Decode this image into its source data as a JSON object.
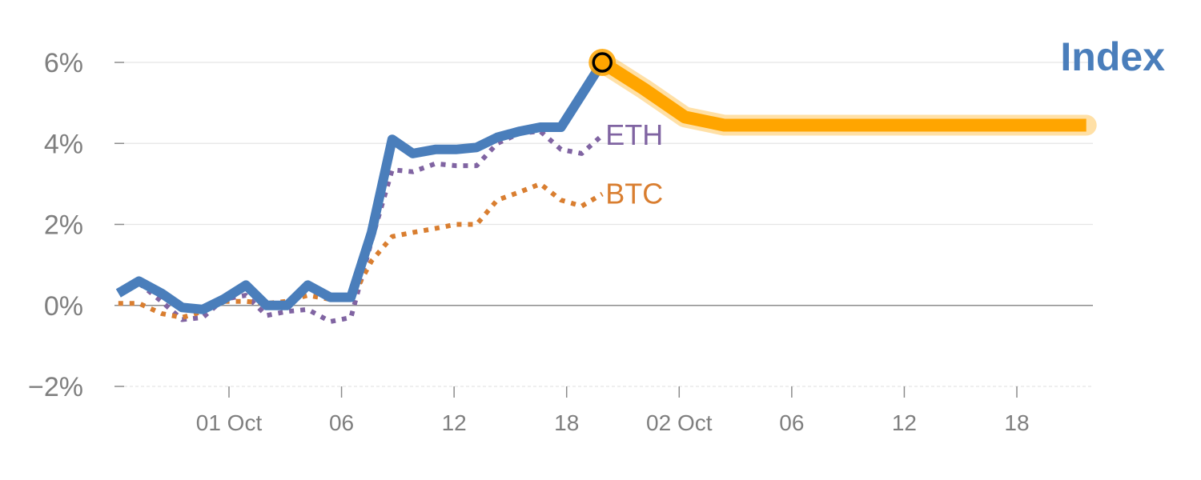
{
  "chart_data": {
    "type": "line",
    "title": "Index",
    "ylim": [
      -2,
      6
    ],
    "y_ticks": [
      {
        "value": 6,
        "label": "6%"
      },
      {
        "value": 4,
        "label": "4%"
      },
      {
        "value": 2,
        "label": "2%"
      },
      {
        "value": 0,
        "label": "0%"
      },
      {
        "value": -2,
        "label": "−2%"
      }
    ],
    "x_unit": "hours since 30 Sep 00:00",
    "x_ticks": [
      {
        "value": 24,
        "label": "01 Oct"
      },
      {
        "value": 30,
        "label": "06"
      },
      {
        "value": 36,
        "label": "12"
      },
      {
        "value": 42,
        "label": "18"
      },
      {
        "value": 48,
        "label": "02 Oct"
      },
      {
        "value": 54,
        "label": "06"
      },
      {
        "value": 60,
        "label": "12"
      },
      {
        "value": 66,
        "label": "18"
      }
    ],
    "grid": "horizontal",
    "series": [
      {
        "name": "Index",
        "role": "history",
        "color": "#4a7ebb",
        "style": "solid",
        "points": [
          [
            18.1,
            0.3
          ],
          [
            19.2,
            0.6
          ],
          [
            20.4,
            0.3
          ],
          [
            21.5,
            -0.05
          ],
          [
            22.6,
            -0.1
          ],
          [
            23.7,
            0.15
          ],
          [
            24.9,
            0.5
          ],
          [
            26.0,
            0.0
          ],
          [
            27.1,
            0.0
          ],
          [
            28.2,
            0.5
          ],
          [
            29.4,
            0.2
          ],
          [
            30.5,
            0.2
          ],
          [
            31.6,
            1.8
          ],
          [
            32.7,
            4.1
          ],
          [
            33.8,
            3.75
          ],
          [
            35.0,
            3.85
          ],
          [
            36.1,
            3.85
          ],
          [
            37.2,
            3.9
          ],
          [
            38.3,
            4.15
          ],
          [
            39.5,
            4.3
          ],
          [
            40.6,
            4.4
          ],
          [
            41.7,
            4.4
          ],
          [
            42.8,
            5.2
          ],
          [
            43.9,
            6.0
          ]
        ]
      },
      {
        "name": "ETH",
        "color": "#8064a2",
        "style": "dotted",
        "points": [
          [
            18.1,
            0.35
          ],
          [
            19.2,
            0.55
          ],
          [
            20.4,
            0.1
          ],
          [
            21.5,
            -0.35
          ],
          [
            22.6,
            -0.3
          ],
          [
            23.7,
            0.15
          ],
          [
            24.9,
            0.25
          ],
          [
            26.0,
            -0.25
          ],
          [
            27.1,
            -0.15
          ],
          [
            28.2,
            -0.1
          ],
          [
            29.4,
            -0.4
          ],
          [
            30.5,
            -0.3
          ],
          [
            31.6,
            1.6
          ],
          [
            32.7,
            3.35
          ],
          [
            33.8,
            3.3
          ],
          [
            35.0,
            3.5
          ],
          [
            36.1,
            3.45
          ],
          [
            37.2,
            3.45
          ],
          [
            38.3,
            4.0
          ],
          [
            39.5,
            4.25
          ],
          [
            40.6,
            4.3
          ],
          [
            41.7,
            3.85
          ],
          [
            42.8,
            3.75
          ],
          [
            43.9,
            4.2
          ]
        ]
      },
      {
        "name": "BTC",
        "color": "#d97e30",
        "style": "dotted",
        "points": [
          [
            18.1,
            0.05
          ],
          [
            19.2,
            0.05
          ],
          [
            20.4,
            -0.2
          ],
          [
            21.5,
            -0.3
          ],
          [
            22.6,
            -0.15
          ],
          [
            23.7,
            0.1
          ],
          [
            24.9,
            0.1
          ],
          [
            26.0,
            0.05
          ],
          [
            27.1,
            0.1
          ],
          [
            28.2,
            0.25
          ],
          [
            29.4,
            0.15
          ],
          [
            30.5,
            0.15
          ],
          [
            31.6,
            1.1
          ],
          [
            32.7,
            1.7
          ],
          [
            33.8,
            1.8
          ],
          [
            35.0,
            1.9
          ],
          [
            36.1,
            2.0
          ],
          [
            37.2,
            2.0
          ],
          [
            38.3,
            2.6
          ],
          [
            39.5,
            2.8
          ],
          [
            40.6,
            3.0
          ],
          [
            41.7,
            2.6
          ],
          [
            42.8,
            2.45
          ],
          [
            43.9,
            2.75
          ]
        ]
      },
      {
        "name": "Index",
        "role": "projection",
        "color": "#ffa500",
        "style": "solid",
        "points": [
          [
            43.9,
            6.0
          ],
          [
            46.1,
            5.35
          ],
          [
            48.3,
            4.65
          ],
          [
            50.4,
            4.45
          ],
          [
            52.5,
            4.45
          ],
          [
            55.0,
            4.45
          ],
          [
            60.0,
            4.45
          ],
          [
            65.0,
            4.45
          ],
          [
            69.7,
            4.45
          ]
        ]
      }
    ],
    "marker": {
      "x": 43.9,
      "y": 6.0,
      "fill": "#ffa500",
      "stroke": "#000000"
    },
    "colors": {
      "grid": "#e5e5e5",
      "zero_line": "#8c8c8c",
      "axis_text": "#7f7f7f"
    }
  }
}
